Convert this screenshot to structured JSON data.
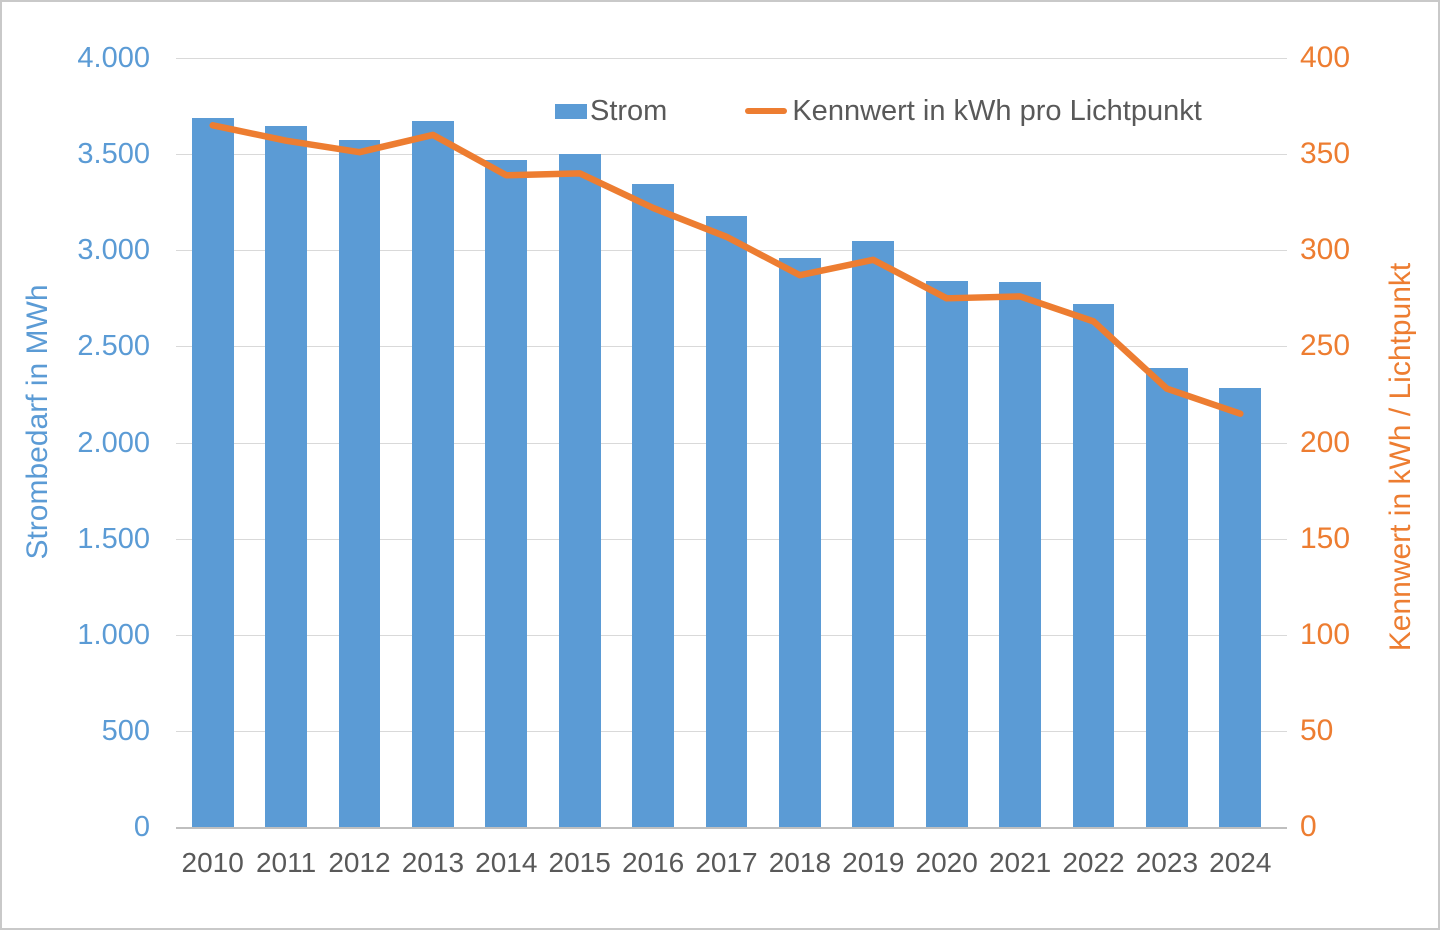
{
  "chart_data": {
    "type": "bar",
    "subtype": "combo-bar-line",
    "categories": [
      "2010",
      "2011",
      "2012",
      "2013",
      "2014",
      "2015",
      "2016",
      "2017",
      "2018",
      "2019",
      "2020",
      "2021",
      "2022",
      "2023",
      "2024"
    ],
    "series": [
      {
        "name": "Strom",
        "type": "bar",
        "axis": "left",
        "color": "#5b9bd5",
        "values": [
          3690,
          3645,
          3575,
          3670,
          3470,
          3500,
          3345,
          3180,
          2960,
          3050,
          2840,
          2835,
          2720,
          2390,
          2285
        ]
      },
      {
        "name": "Kennwert in kWh pro Lichtpunkt",
        "type": "line",
        "axis": "right",
        "color": "#ed7d31",
        "values": [
          365,
          357,
          351,
          360,
          339,
          340,
          322,
          307,
          287,
          295,
          275,
          276,
          263,
          228,
          215
        ]
      }
    ],
    "left_axis": {
      "title": "Strombedarf in MWh",
      "min": 0,
      "max": 4000,
      "step": 500,
      "tick_labels": [
        "4.000",
        "3.500",
        "3.000",
        "2.500",
        "2.000",
        "1.500",
        "1.000",
        "500",
        "0"
      ],
      "color": "#5b9bd5"
    },
    "right_axis": {
      "title": "Kennwert in kWh / Lichtpunkt",
      "min": 0,
      "max": 400,
      "step": 50,
      "tick_labels": [
        "400",
        "350",
        "300",
        "250",
        "200",
        "150",
        "100",
        "50",
        "0"
      ],
      "color": "#ed7d31"
    },
    "legend": {
      "position": "top",
      "items": [
        {
          "label": "Strom",
          "swatch": "bar-square",
          "color": "#5b9bd5"
        },
        {
          "label": "Kennwert in kWh pro Lichtpunkt",
          "swatch": "line",
          "color": "#ed7d31"
        }
      ]
    },
    "grid": true,
    "background": "#ffffff",
    "gridline_color": "#d9d9d9",
    "text_color": "#595959"
  }
}
